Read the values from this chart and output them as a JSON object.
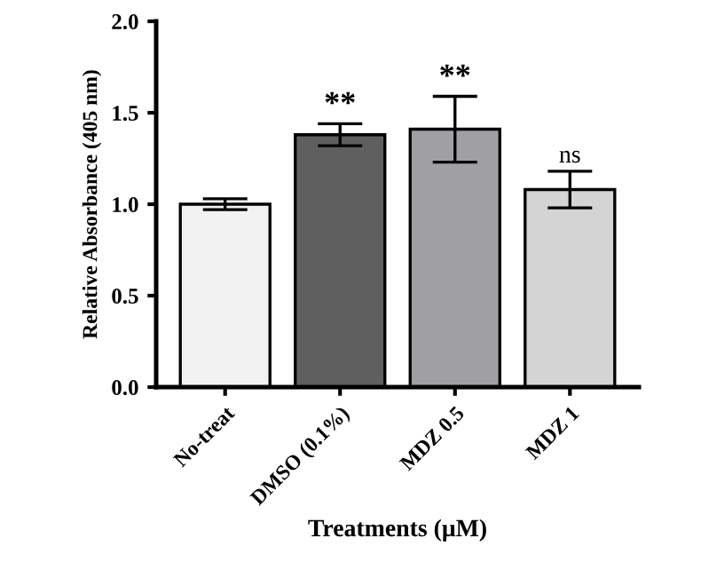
{
  "chart_data": {
    "type": "bar",
    "xlabel": "Treatments (μM)",
    "ylabel": "Relative Absorbance (405 nm)",
    "categories": [
      "No-treat",
      "DMSO (0.1%)",
      "MDZ 0.5",
      "MDZ 1"
    ],
    "values": [
      1.0,
      1.38,
      1.41,
      1.08
    ],
    "errors": [
      0.03,
      0.06,
      0.18,
      0.1
    ],
    "colors": [
      "#f2f2f2",
      "#5f5f5f",
      "#a0a0a4",
      "#d4d4d4"
    ],
    "ylim": [
      0,
      2.0
    ],
    "yticks": [
      {
        "value": 0,
        "label": "0.0"
      },
      {
        "value": 0.5,
        "label": "0.5"
      },
      {
        "value": 1.0,
        "label": "1.0"
      },
      {
        "value": 1.5,
        "label": "1.5"
      },
      {
        "value": 2.0,
        "label": "2.0"
      }
    ],
    "grid": false,
    "legend": false,
    "annotations": [
      {
        "text": "**",
        "x": "DMSO (0.1%)",
        "y": 1.44
      },
      {
        "text": "**",
        "x": "MDZ 0.5",
        "y": 1.59
      },
      {
        "text": "ns",
        "x": "MDZ 1",
        "y": 1.18
      }
    ]
  }
}
